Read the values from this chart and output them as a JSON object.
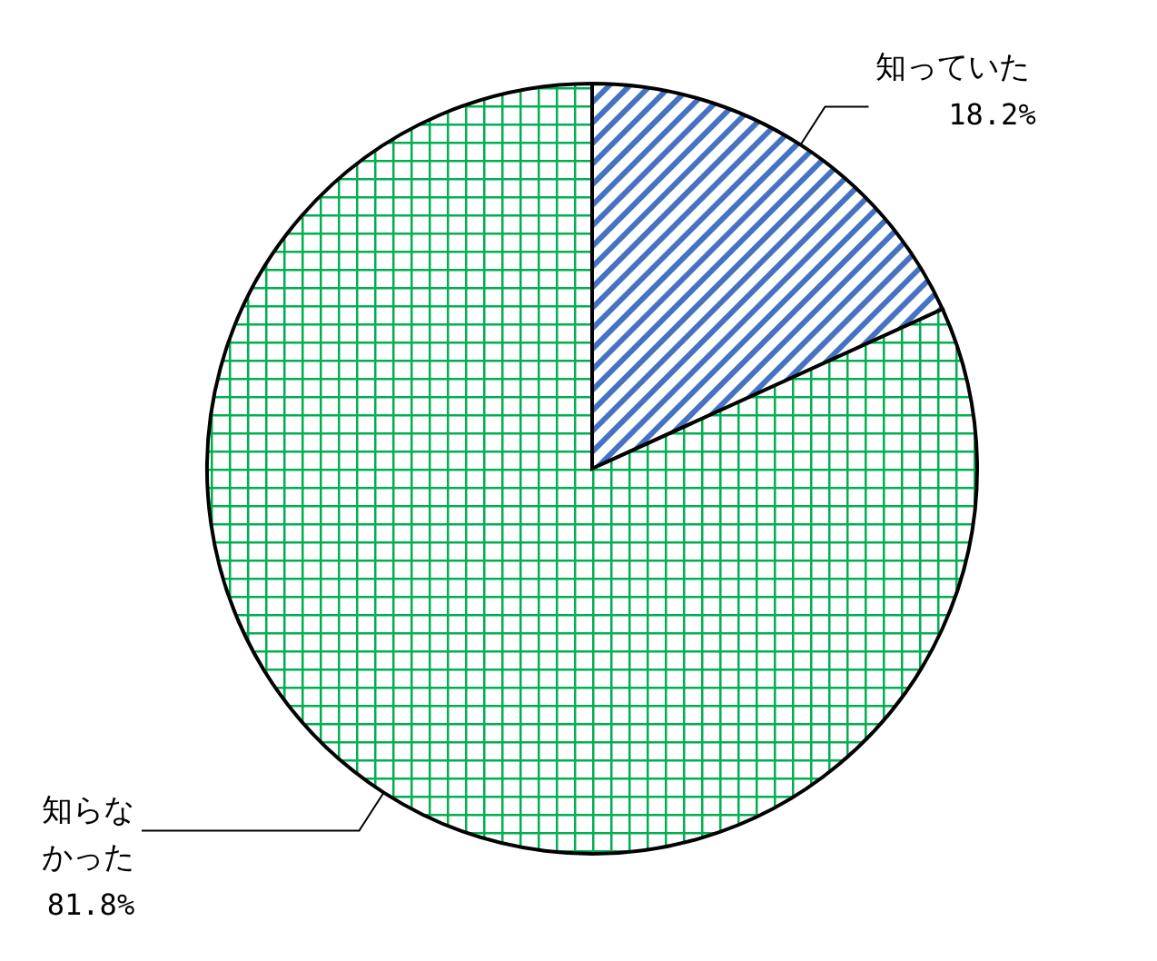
{
  "chart_data": {
    "type": "pie",
    "categories": [
      "知っていた",
      "知らなかった"
    ],
    "values": [
      18.2,
      81.8
    ],
    "colors": [
      "#4472c4",
      "#00b050"
    ],
    "value_labels": [
      "18.2%",
      "81.8%"
    ]
  }
}
